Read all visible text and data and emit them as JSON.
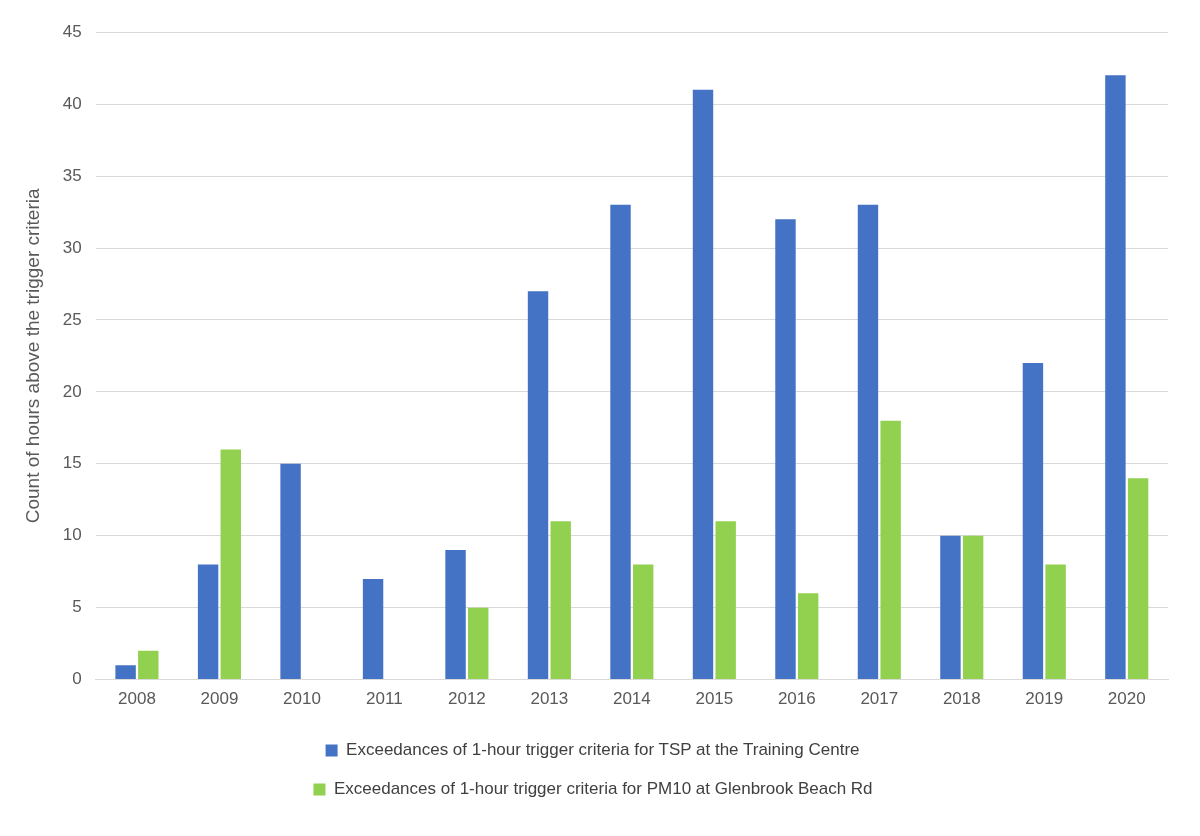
{
  "chart_data": {
    "type": "bar",
    "ylabel": "Count of hours above the trigger criteria",
    "categories": [
      "2008",
      "2009",
      "2010",
      "2011",
      "2012",
      "2013",
      "2014",
      "2015",
      "2016",
      "2017",
      "2018",
      "2019",
      "2020"
    ],
    "series": [
      {
        "name": "Exceedances of 1-hour trigger criteria for TSP at the Training Centre",
        "color": "#4472c4",
        "values": [
          1,
          8,
          15,
          7,
          9,
          27,
          33,
          41,
          32,
          33,
          10,
          22,
          42
        ]
      },
      {
        "name": "Exceedances of 1-hour trigger criteria for PM10 at Glenbrook Beach Rd",
        "color": "#92d050",
        "values": [
          2,
          16,
          0,
          0,
          5,
          11,
          8,
          11,
          6,
          18,
          10,
          8,
          14
        ]
      }
    ],
    "ylim": [
      0,
      45
    ],
    "yticks": [
      0,
      5,
      10,
      15,
      20,
      25,
      30,
      35,
      40,
      45
    ],
    "grid": "y",
    "legend": "bottom"
  }
}
